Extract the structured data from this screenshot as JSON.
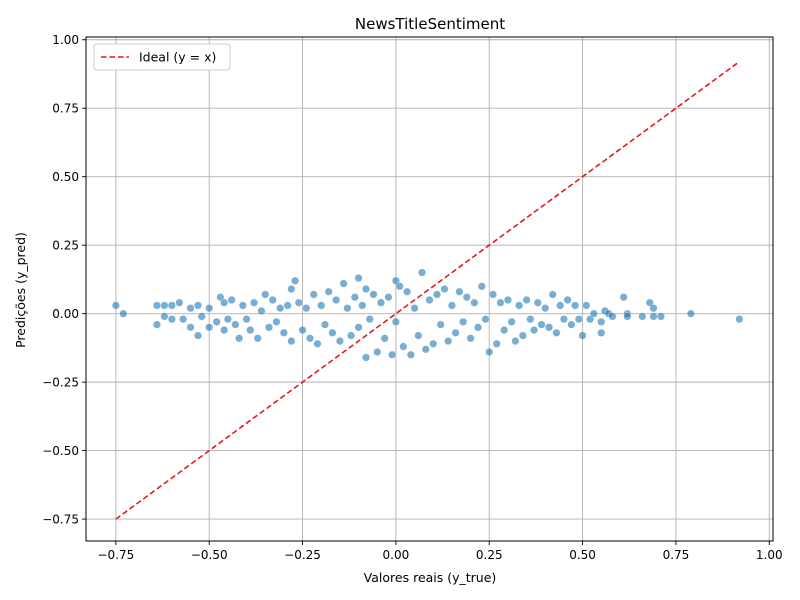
{
  "chart_data": {
    "type": "scatter",
    "title": "NewsTitleSentiment",
    "xlabel": "Valores reais (y_true)",
    "ylabel": "Predições (y_pred)",
    "xlim": [
      -0.83,
      1.01
    ],
    "ylim": [
      -0.83,
      1.01
    ],
    "xticks": [
      -0.75,
      -0.5,
      -0.25,
      0.0,
      0.25,
      0.5,
      0.75,
      1.0
    ],
    "yticks": [
      -0.75,
      -0.5,
      -0.25,
      0.0,
      0.25,
      0.5,
      0.75,
      1.0
    ],
    "xtick_labels": [
      "−0.75",
      "−0.50",
      "−0.25",
      "0.00",
      "0.25",
      "0.50",
      "0.75",
      "1.00"
    ],
    "ytick_labels": [
      "−0.75",
      "−0.50",
      "−0.25",
      "0.00",
      "0.25",
      "0.50",
      "0.75",
      "1.00"
    ],
    "grid": true,
    "legend_position": "top-left",
    "colors": {
      "points": "#1f77b4",
      "ideal_line": "#e31a1c"
    },
    "series": [
      {
        "kind": "scatter",
        "points": [
          [
            -0.75,
            0.03
          ],
          [
            -0.73,
            0.0
          ],
          [
            -0.64,
            0.03
          ],
          [
            -0.64,
            -0.04
          ],
          [
            -0.62,
            0.03
          ],
          [
            -0.62,
            -0.01
          ],
          [
            -0.6,
            0.03
          ],
          [
            -0.6,
            -0.02
          ],
          [
            -0.58,
            0.04
          ],
          [
            -0.57,
            -0.02
          ],
          [
            -0.55,
            -0.05
          ],
          [
            -0.55,
            0.02
          ],
          [
            -0.53,
            -0.08
          ],
          [
            -0.53,
            0.03
          ],
          [
            -0.52,
            -0.01
          ],
          [
            -0.5,
            -0.05
          ],
          [
            -0.5,
            0.02
          ],
          [
            -0.48,
            -0.03
          ],
          [
            -0.47,
            0.06
          ],
          [
            -0.46,
            0.04
          ],
          [
            -0.46,
            -0.06
          ],
          [
            -0.45,
            -0.02
          ],
          [
            -0.44,
            0.05
          ],
          [
            -0.43,
            -0.04
          ],
          [
            -0.42,
            -0.09
          ],
          [
            -0.41,
            0.03
          ],
          [
            -0.4,
            -0.02
          ],
          [
            -0.39,
            -0.06
          ],
          [
            -0.38,
            0.04
          ],
          [
            -0.37,
            -0.09
          ],
          [
            -0.36,
            0.01
          ],
          [
            -0.35,
            0.07
          ],
          [
            -0.34,
            -0.05
          ],
          [
            -0.33,
            0.05
          ],
          [
            -0.32,
            -0.03
          ],
          [
            -0.31,
            0.02
          ],
          [
            -0.3,
            -0.07
          ],
          [
            -0.29,
            0.03
          ],
          [
            -0.28,
            0.09
          ],
          [
            -0.28,
            -0.1
          ],
          [
            -0.27,
            0.12
          ],
          [
            -0.26,
            0.04
          ],
          [
            -0.25,
            -0.06
          ],
          [
            -0.24,
            0.02
          ],
          [
            -0.23,
            -0.09
          ],
          [
            -0.22,
            0.07
          ],
          [
            -0.21,
            -0.11
          ],
          [
            -0.2,
            0.03
          ],
          [
            -0.19,
            -0.04
          ],
          [
            -0.18,
            0.08
          ],
          [
            -0.17,
            -0.07
          ],
          [
            -0.16,
            0.05
          ],
          [
            -0.15,
            -0.1
          ],
          [
            -0.14,
            0.11
          ],
          [
            -0.13,
            0.02
          ],
          [
            -0.12,
            -0.08
          ],
          [
            -0.11,
            0.06
          ],
          [
            -0.1,
            0.13
          ],
          [
            -0.1,
            -0.05
          ],
          [
            -0.09,
            0.03
          ],
          [
            -0.08,
            -0.16
          ],
          [
            -0.08,
            0.09
          ],
          [
            -0.07,
            -0.02
          ],
          [
            -0.06,
            0.07
          ],
          [
            -0.05,
            -0.14
          ],
          [
            -0.04,
            0.04
          ],
          [
            -0.03,
            -0.09
          ],
          [
            -0.02,
            0.06
          ],
          [
            -0.01,
            -0.15
          ],
          [
            0.0,
            0.12
          ],
          [
            0.0,
            -0.03
          ],
          [
            0.01,
            0.1
          ],
          [
            0.02,
            -0.12
          ],
          [
            0.03,
            0.08
          ],
          [
            0.04,
            -0.15
          ],
          [
            0.05,
            0.02
          ],
          [
            0.06,
            -0.08
          ],
          [
            0.07,
            0.15
          ],
          [
            0.08,
            -0.13
          ],
          [
            0.09,
            0.05
          ],
          [
            0.1,
            -0.11
          ],
          [
            0.11,
            0.07
          ],
          [
            0.12,
            -0.04
          ],
          [
            0.13,
            0.09
          ],
          [
            0.14,
            -0.1
          ],
          [
            0.15,
            0.03
          ],
          [
            0.16,
            -0.07
          ],
          [
            0.17,
            0.08
          ],
          [
            0.18,
            -0.03
          ],
          [
            0.19,
            0.06
          ],
          [
            0.2,
            -0.09
          ],
          [
            0.21,
            0.04
          ],
          [
            0.22,
            -0.05
          ],
          [
            0.23,
            0.1
          ],
          [
            0.24,
            -0.02
          ],
          [
            0.25,
            -0.14
          ],
          [
            0.26,
            0.07
          ],
          [
            0.27,
            -0.11
          ],
          [
            0.28,
            0.04
          ],
          [
            0.29,
            -0.06
          ],
          [
            0.3,
            0.05
          ],
          [
            0.31,
            -0.03
          ],
          [
            0.32,
            -0.1
          ],
          [
            0.33,
            0.03
          ],
          [
            0.34,
            -0.08
          ],
          [
            0.35,
            0.05
          ],
          [
            0.36,
            -0.02
          ],
          [
            0.37,
            -0.06
          ],
          [
            0.38,
            0.04
          ],
          [
            0.39,
            -0.04
          ],
          [
            0.4,
            0.02
          ],
          [
            0.41,
            -0.05
          ],
          [
            0.42,
            0.07
          ],
          [
            0.43,
            -0.07
          ],
          [
            0.44,
            0.03
          ],
          [
            0.45,
            -0.02
          ],
          [
            0.46,
            0.05
          ],
          [
            0.47,
            -0.04
          ],
          [
            0.48,
            0.03
          ],
          [
            0.49,
            -0.02
          ],
          [
            0.5,
            -0.08
          ],
          [
            0.51,
            0.03
          ],
          [
            0.52,
            -0.02
          ],
          [
            0.53,
            0.0
          ],
          [
            0.55,
            -0.03
          ],
          [
            0.55,
            -0.07
          ],
          [
            0.56,
            0.01
          ],
          [
            0.57,
            0.0
          ],
          [
            0.58,
            -0.01
          ],
          [
            0.61,
            0.06
          ],
          [
            0.62,
            0.0
          ],
          [
            0.62,
            -0.01
          ],
          [
            0.66,
            -0.01
          ],
          [
            0.68,
            0.04
          ],
          [
            0.69,
            0.02
          ],
          [
            0.69,
            -0.01
          ],
          [
            0.71,
            -0.01
          ],
          [
            0.79,
            0.0
          ],
          [
            0.92,
            -0.02
          ]
        ]
      },
      {
        "name": "Ideal (y = x)",
        "kind": "line",
        "style": "dashed",
        "x": [
          -0.75,
          0.92
        ],
        "y": [
          -0.75,
          0.92
        ]
      }
    ]
  }
}
